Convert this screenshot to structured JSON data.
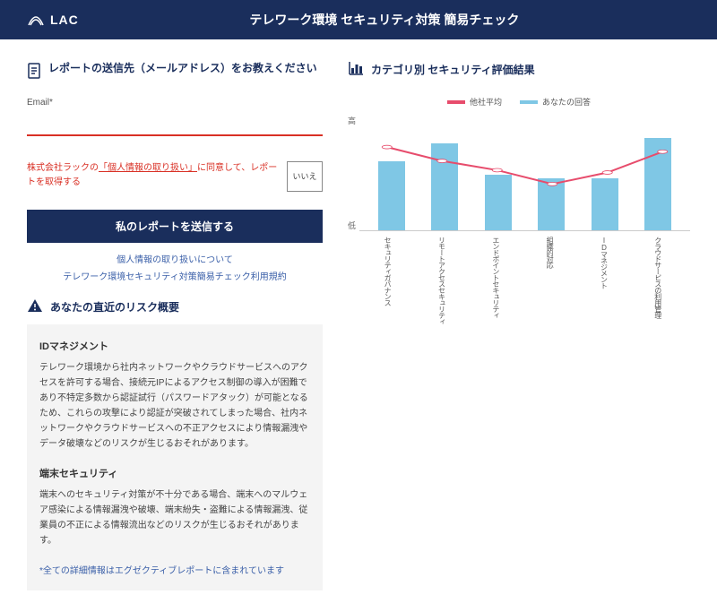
{
  "header": {
    "logo_text": "LAC",
    "title": "テレワーク環境 セキュリティ対策 簡易チェック"
  },
  "form": {
    "section_title": "レポートの送信先（メールアドレス）をお教えください",
    "email_label": "Email*",
    "email_value": "",
    "consent_prefix": "株式会社ラックの",
    "consent_link": "「個人情報の取り扱い」",
    "consent_suffix": "に同意して、レポートを取得する",
    "toggle_label": "いいえ",
    "submit_label": "私のレポートを送信する",
    "link1": "個人情報の取り扱いについて",
    "link2": "テレワーク環境セキュリティ対策簡易チェック利用規約"
  },
  "risk": {
    "heading": "あなたの直近のリスク概要",
    "items": [
      {
        "title": "IDマネジメント",
        "body": "テレワーク環境から社内ネットワークやクラウドサービスへのアクセスを許可する場合、接続元IPによるアクセス制御の導入が困難であり不特定多数から認証試行（パスワードアタック）が可能となるため、これらの攻撃により認証が突破されてしまった場合、社内ネットワークやクラウドサービスへの不正アクセスにより情報漏洩やデータ破壊などのリスクが生じるおそれがあります。"
      },
      {
        "title": "端末セキュリティ",
        "body": "端末へのセキュリティ対策が不十分である場合、端末へのマルウェア感染による情報漏洩や破壊、端末紛失・盗難による情報漏洩、従業員の不正による情報流出などのリスクが生じるおそれがあります。"
      }
    ],
    "note": "*全ての詳細情報はエグゼクティブレポートに含まれています"
  },
  "chart": {
    "heading": "カテゴリ別 セキュリティ評価結果",
    "legend": [
      {
        "label": "他社平均",
        "color": "#e74c6c"
      },
      {
        "label": "あなたの回答",
        "color": "#7fc7e5"
      }
    ],
    "y_high": "高",
    "y_low": "低",
    "bar_color": "#7fc7e5",
    "line_color": "#e74c6c",
    "categories": [
      "セキュリティガバナンス",
      "リモートアクセスセキュリティ",
      "エンドポイントセキュリティ",
      "組織的対応",
      "IDマネジメント",
      "クラウドサービスの利用管理"
    ],
    "bar_values": [
      60,
      75,
      48,
      45,
      45,
      80
    ],
    "line_values": [
      72,
      60,
      52,
      40,
      50,
      68
    ],
    "ylim": [
      0,
      100
    ]
  },
  "colors": {
    "brand": "#1a2e5c",
    "error": "#d93025",
    "link": "#3a5fa8",
    "panel_bg": "#f4f4f4"
  }
}
